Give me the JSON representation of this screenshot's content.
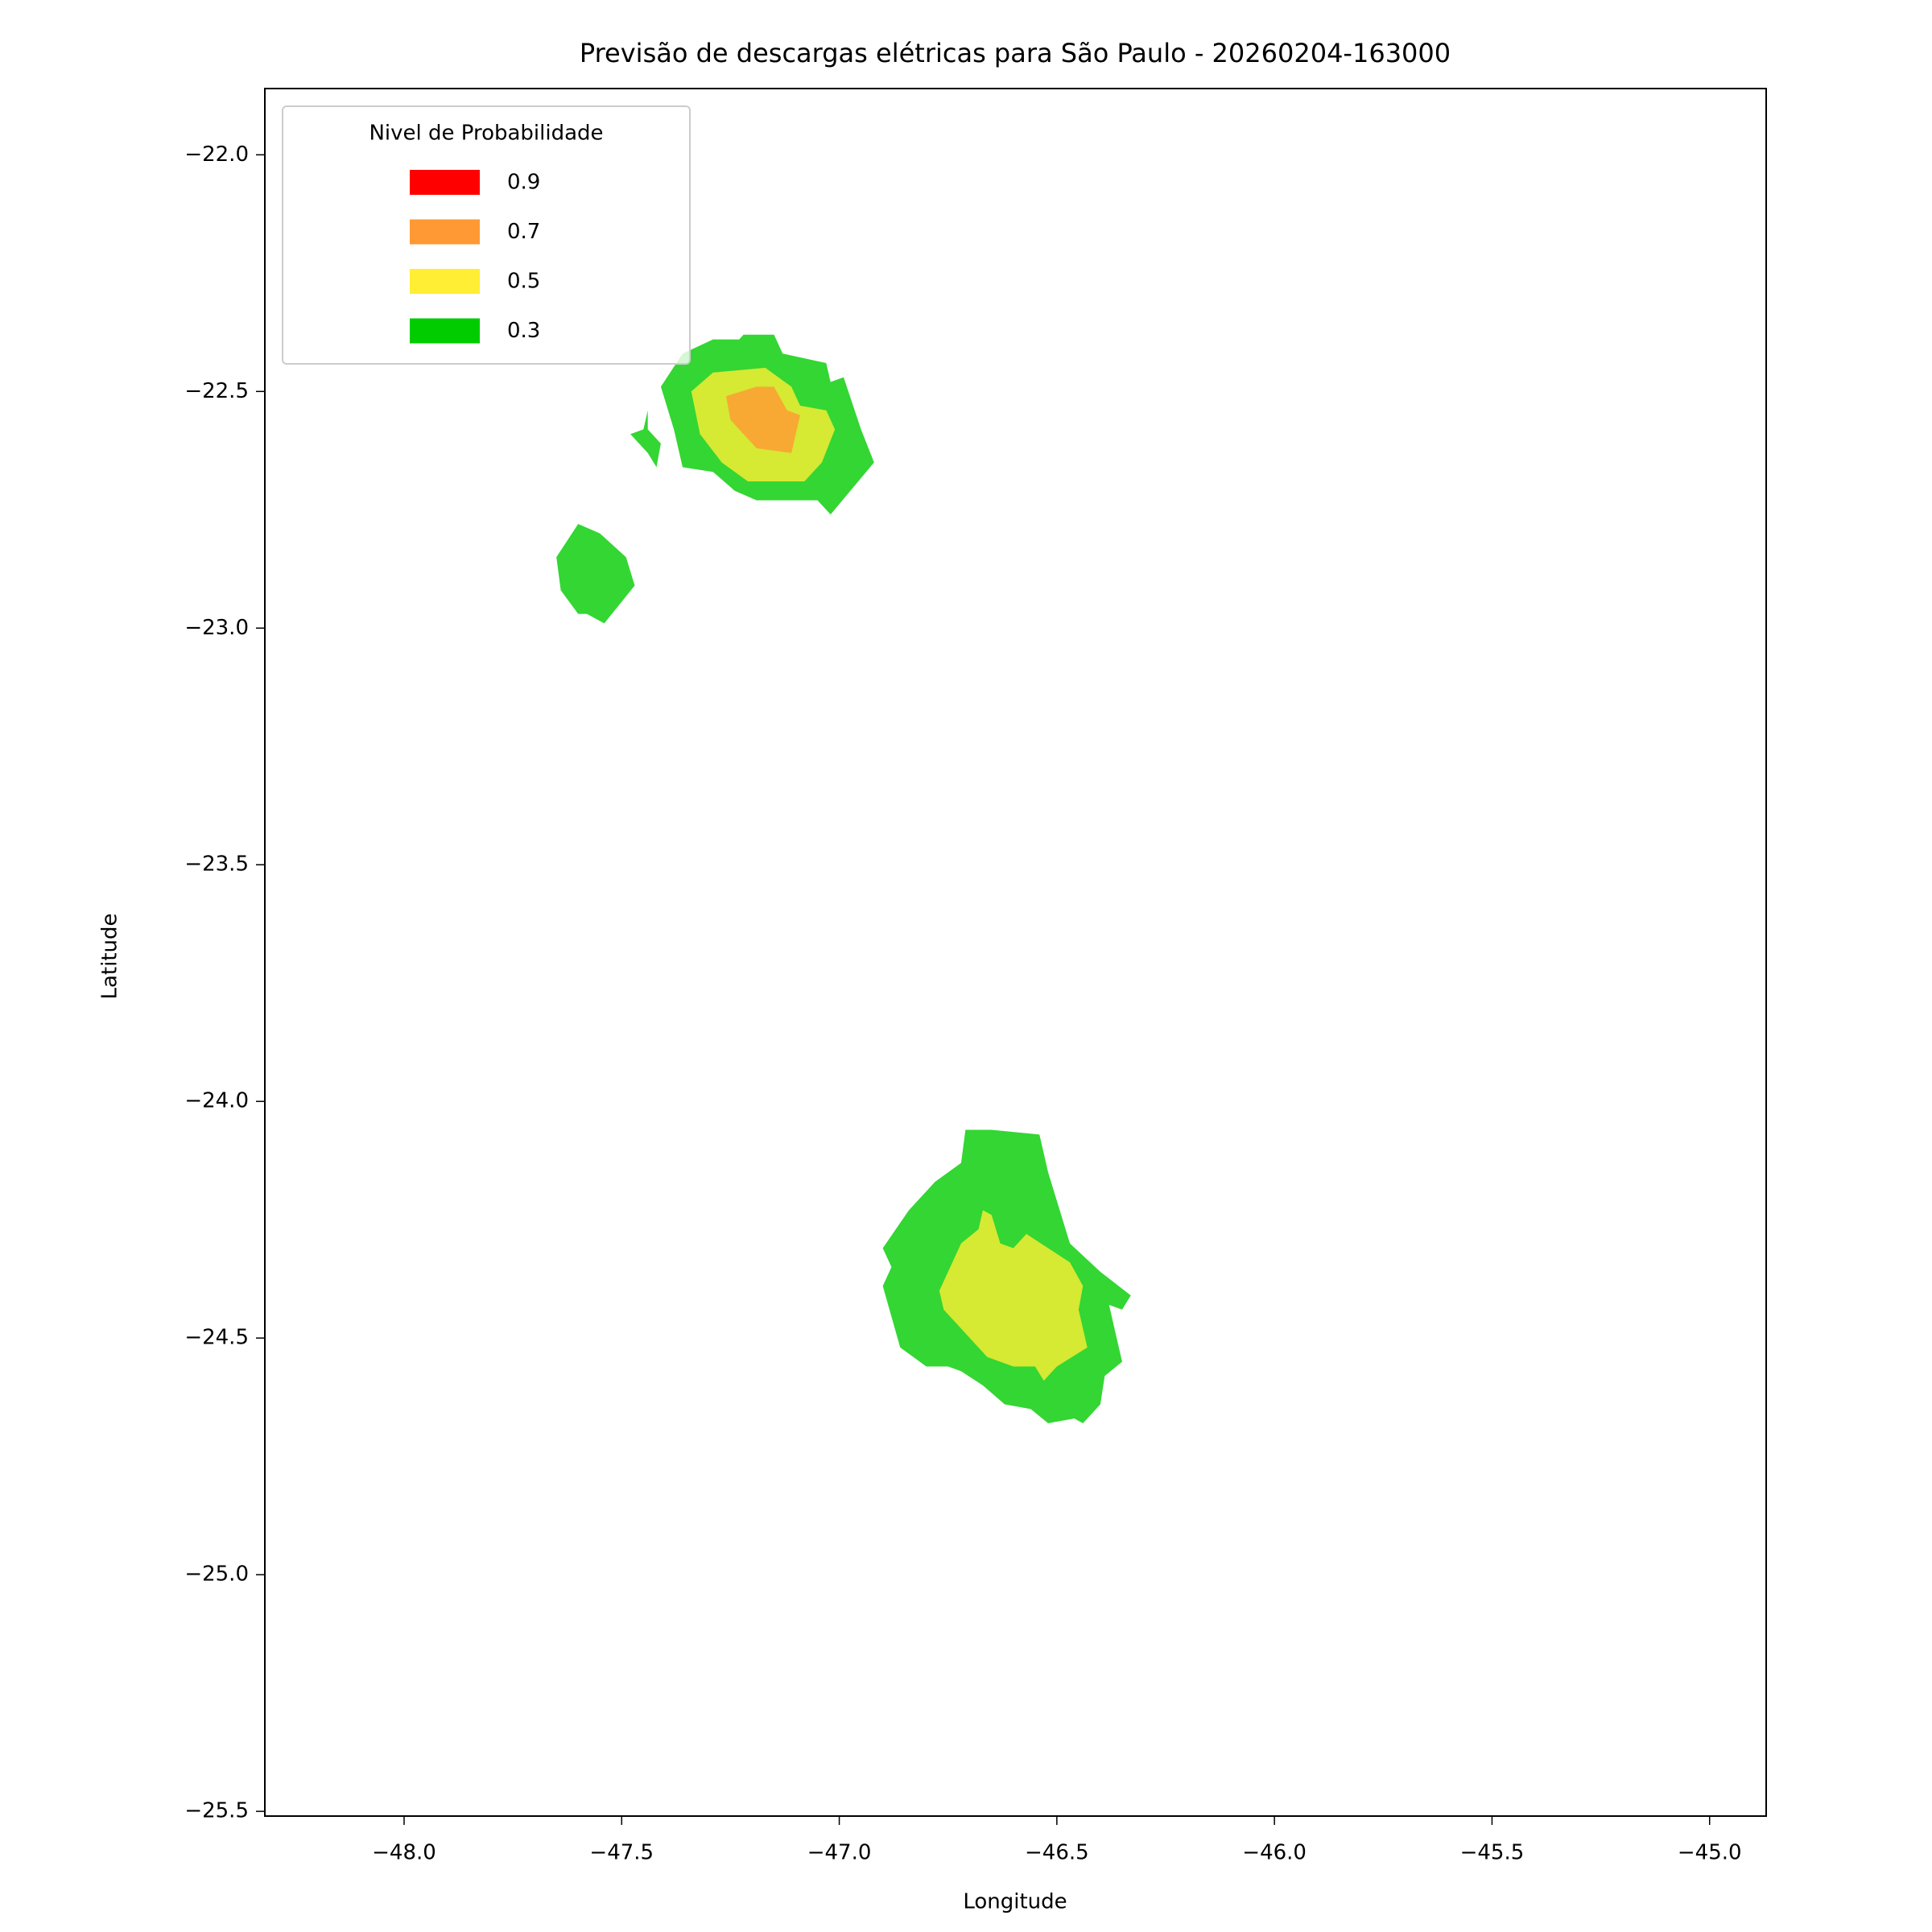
{
  "chart_data": {
    "type": "contourf",
    "title": "Previsão de descargas elétricas para São Paulo - 20260204-163000",
    "x_label": "Longitude",
    "y_label": "Latitude",
    "legend_title": "Nivel de Probabilidade",
    "legend": "upper left",
    "alpha": 0.8,
    "xlim": [
      -48.32,
      -44.87
    ],
    "ylim": [
      -25.51,
      -21.86
    ],
    "xticks": [
      {
        "value": -48,
        "label": "−48.0"
      },
      {
        "value": -47.5,
        "label": "−47.5"
      },
      {
        "value": -47,
        "label": "−47.0"
      },
      {
        "value": -46.5,
        "label": "−46.5"
      },
      {
        "value": -46,
        "label": "−46.0"
      },
      {
        "value": -45.5,
        "label": "−45.5"
      },
      {
        "value": -45,
        "label": "−45.0"
      }
    ],
    "yticks": [
      {
        "value": -22,
        "label": "−22.0"
      },
      {
        "value": -22.5,
        "label": "−22.5"
      },
      {
        "value": -23,
        "label": "−23.0"
      },
      {
        "value": -23.5,
        "label": "−23.5"
      },
      {
        "value": -24,
        "label": "−24.0"
      },
      {
        "value": -24.5,
        "label": "−24.5"
      },
      {
        "value": -25,
        "label": "−25.0"
      },
      {
        "value": -25.5,
        "label": "−25.5"
      }
    ],
    "series": [
      {
        "name": "0.9",
        "color": "#ff0000",
        "polygons": []
      },
      {
        "name": "0.7",
        "color": "#ff9933",
        "polygons": [
          [
            [
              -47.26,
              -22.51
            ],
            [
              -47.19,
              -22.49
            ],
            [
              -47.15,
              -22.49
            ],
            [
              -47.12,
              -22.54
            ],
            [
              -47.09,
              -22.55
            ],
            [
              -47.1,
              -22.59
            ],
            [
              -47.11,
              -22.63
            ],
            [
              -47.19,
              -22.62
            ],
            [
              -47.22,
              -22.59
            ],
            [
              -47.25,
              -22.56
            ]
          ]
        ]
      },
      {
        "name": "0.5",
        "color": "#ffee33",
        "polygons": [
          [
            [
              -47.34,
              -22.5
            ],
            [
              -47.29,
              -22.46
            ],
            [
              -47.17,
              -22.45
            ],
            [
              -47.11,
              -22.49
            ],
            [
              -47.09,
              -22.53
            ],
            [
              -47.03,
              -22.54
            ],
            [
              -47.01,
              -22.58
            ],
            [
              -47.04,
              -22.65
            ],
            [
              -47.08,
              -22.69
            ],
            [
              -47.21,
              -22.69
            ],
            [
              -47.27,
              -22.65
            ],
            [
              -47.32,
              -22.59
            ]
          ],
          [
            [
              -46.77,
              -24.4
            ],
            [
              -46.72,
              -24.3
            ],
            [
              -46.68,
              -24.27
            ],
            [
              -46.67,
              -24.23
            ],
            [
              -46.65,
              -24.24
            ],
            [
              -46.63,
              -24.3
            ],
            [
              -46.6,
              -24.31
            ],
            [
              -46.57,
              -24.28
            ],
            [
              -46.52,
              -24.31
            ],
            [
              -46.47,
              -24.34
            ],
            [
              -46.44,
              -24.39
            ],
            [
              -46.45,
              -24.44
            ],
            [
              -46.43,
              -24.52
            ],
            [
              -46.5,
              -24.56
            ],
            [
              -46.53,
              -24.59
            ],
            [
              -46.55,
              -24.56
            ],
            [
              -46.6,
              -24.56
            ],
            [
              -46.66,
              -24.54
            ],
            [
              -46.72,
              -24.48
            ],
            [
              -46.76,
              -24.44
            ]
          ]
        ]
      },
      {
        "name": "0.3",
        "color": "#00cc00",
        "polygons": [
          [
            [
              -47.41,
              -22.49
            ],
            [
              -47.36,
              -22.42
            ],
            [
              -47.29,
              -22.39
            ],
            [
              -47.23,
              -22.39
            ],
            [
              -47.22,
              -22.38
            ],
            [
              -47.15,
              -22.38
            ],
            [
              -47.13,
              -22.42
            ],
            [
              -47.08,
              -22.43
            ],
            [
              -47.03,
              -22.44
            ],
            [
              -47.02,
              -22.48
            ],
            [
              -46.99,
              -22.47
            ],
            [
              -46.95,
              -22.58
            ],
            [
              -46.92,
              -22.65
            ],
            [
              -47.02,
              -22.76
            ],
            [
              -47.05,
              -22.73
            ],
            [
              -47.19,
              -22.73
            ],
            [
              -47.24,
              -22.71
            ],
            [
              -47.29,
              -22.67
            ],
            [
              -47.36,
              -22.66
            ],
            [
              -47.38,
              -22.58
            ]
          ],
          [
            [
              -47.48,
              -22.59
            ],
            [
              -47.45,
              -22.58
            ],
            [
              -47.44,
              -22.54
            ],
            [
              -47.44,
              -22.58
            ],
            [
              -47.41,
              -22.61
            ],
            [
              -47.42,
              -22.66
            ],
            [
              -47.44,
              -22.63
            ]
          ],
          [
            [
              -47.65,
              -22.85
            ],
            [
              -47.6,
              -22.78
            ],
            [
              -47.55,
              -22.8
            ],
            [
              -47.49,
              -22.85
            ],
            [
              -47.47,
              -22.91
            ],
            [
              -47.54,
              -22.99
            ],
            [
              -47.58,
              -22.97
            ],
            [
              -47.6,
              -22.97
            ],
            [
              -47.64,
              -22.92
            ]
          ],
          [
            [
              -46.9,
              -24.31
            ],
            [
              -46.84,
              -24.23
            ],
            [
              -46.78,
              -24.17
            ],
            [
              -46.72,
              -24.13
            ],
            [
              -46.71,
              -24.06
            ],
            [
              -46.65,
              -24.06
            ],
            [
              -46.54,
              -24.07
            ],
            [
              -46.53,
              -24.11
            ],
            [
              -46.52,
              -24.15
            ],
            [
              -46.47,
              -24.3
            ],
            [
              -46.4,
              -24.36
            ],
            [
              -46.33,
              -24.41
            ],
            [
              -46.35,
              -24.44
            ],
            [
              -46.38,
              -24.43
            ],
            [
              -46.35,
              -24.55
            ],
            [
              -46.39,
              -24.58
            ],
            [
              -46.4,
              -24.64
            ],
            [
              -46.44,
              -24.68
            ],
            [
              -46.46,
              -24.67
            ],
            [
              -46.52,
              -24.68
            ],
            [
              -46.56,
              -24.65
            ],
            [
              -46.62,
              -24.64
            ],
            [
              -46.67,
              -24.6
            ],
            [
              -46.72,
              -24.57
            ],
            [
              -46.75,
              -24.56
            ],
            [
              -46.8,
              -24.56
            ],
            [
              -46.86,
              -24.52
            ],
            [
              -46.9,
              -24.39
            ],
            [
              -46.88,
              -24.35
            ]
          ]
        ]
      }
    ]
  }
}
